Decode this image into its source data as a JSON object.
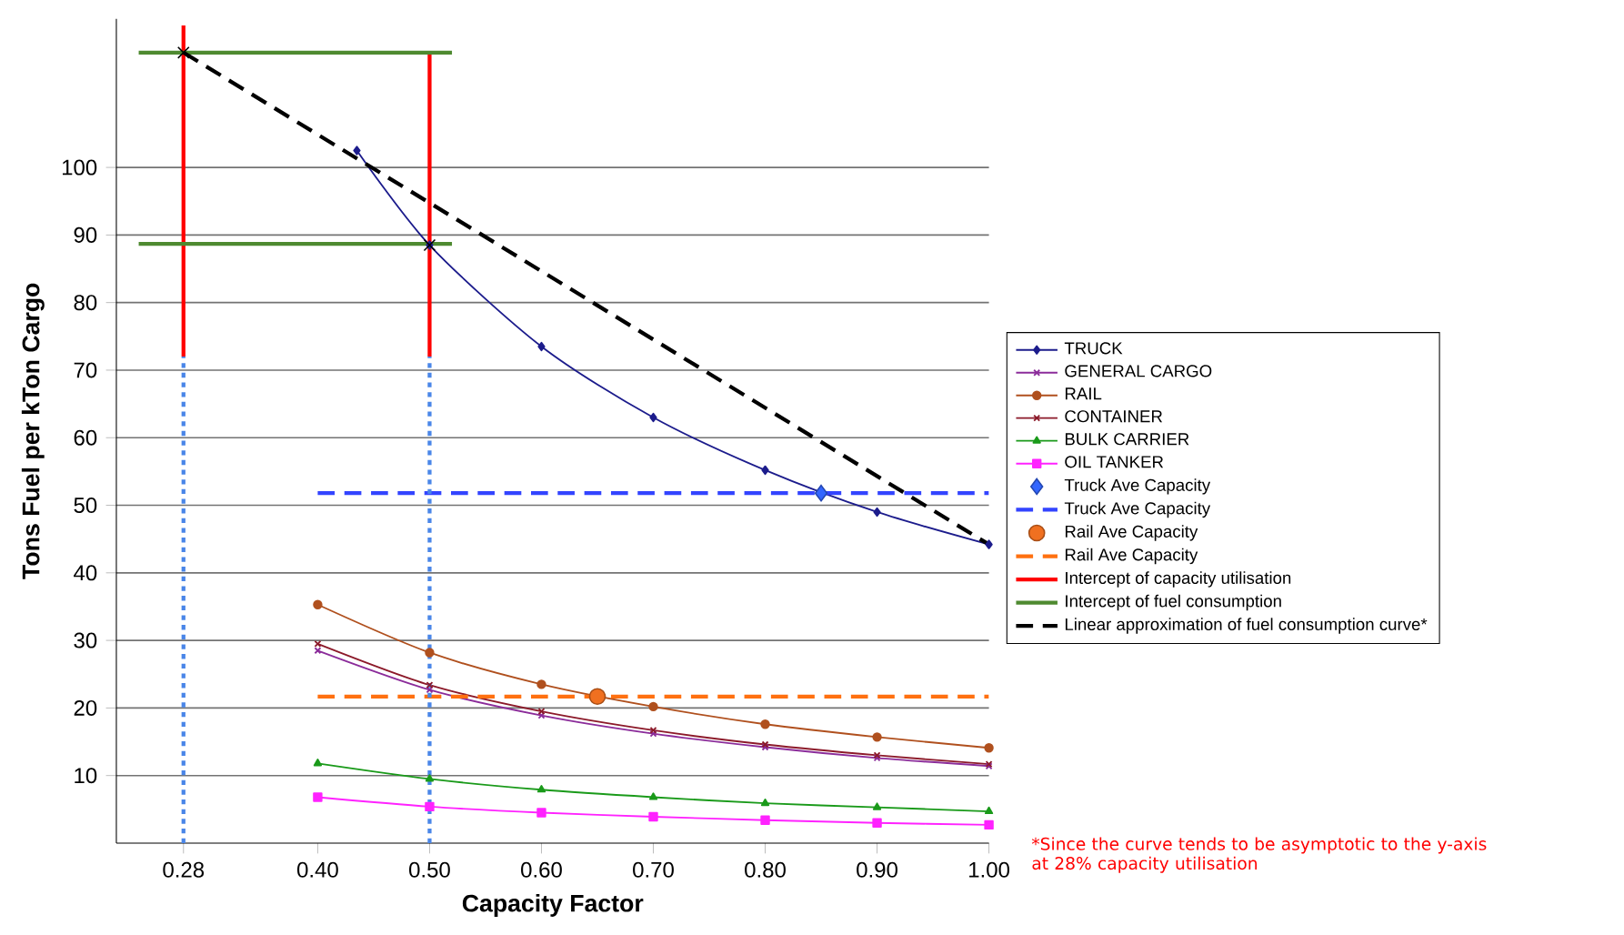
{
  "chart_data": {
    "type": "line",
    "xlabel": "Capacity Factor",
    "ylabel": "Tons Fuel per kTon Cargo",
    "xlim": [
      0.22,
      1.0
    ],
    "ylim": [
      0,
      122
    ],
    "xticks": [
      {
        "value": 0.28,
        "label": "0.28"
      },
      {
        "value": 0.4,
        "label": "0.40"
      },
      {
        "value": 0.5,
        "label": "0.50"
      },
      {
        "value": 0.6,
        "label": "0.60"
      },
      {
        "value": 0.7,
        "label": "0.70"
      },
      {
        "value": 0.8,
        "label": "0.80"
      },
      {
        "value": 0.9,
        "label": "0.90"
      },
      {
        "value": 1.0,
        "label": "1.00"
      }
    ],
    "yticks": [
      10,
      20,
      30,
      40,
      50,
      60,
      70,
      80,
      90,
      100
    ],
    "grid": "y",
    "legend": "right",
    "series": [
      {
        "name": "TRUCK",
        "color": "#1c1c8c",
        "marker": "diamond",
        "x": [
          0.435,
          0.5,
          0.6,
          0.7,
          0.8,
          0.9,
          1.0
        ],
        "values": [
          102.5,
          88.5,
          73.5,
          63,
          55.2,
          49,
          44.2
        ]
      },
      {
        "name": "GENERAL CARGO",
        "color": "#8b2c9a",
        "marker": "cross",
        "x": [
          0.4,
          0.5,
          0.6,
          0.7,
          0.8,
          0.9,
          1.0
        ],
        "values": [
          28.5,
          22.7,
          18.9,
          16.2,
          14.2,
          12.6,
          11.4
        ]
      },
      {
        "name": "RAIL",
        "color": "#b0501e",
        "marker": "circle",
        "x": [
          0.4,
          0.5,
          0.6,
          0.7,
          0.8,
          0.9,
          1.0
        ],
        "values": [
          35.3,
          28.2,
          23.5,
          20.2,
          17.6,
          15.7,
          14.1
        ]
      },
      {
        "name": "CONTAINER",
        "color": "#8c1a2a",
        "marker": "cross",
        "x": [
          0.4,
          0.5,
          0.6,
          0.7,
          0.8,
          0.9,
          1.0
        ],
        "values": [
          29.5,
          23.4,
          19.5,
          16.7,
          14.6,
          13.0,
          11.7
        ]
      },
      {
        "name": "BULK CARRIER",
        "color": "#1a9a1a",
        "marker": "triangle",
        "x": [
          0.4,
          0.5,
          0.6,
          0.7,
          0.8,
          0.9,
          1.0
        ],
        "values": [
          11.8,
          9.5,
          7.9,
          6.8,
          5.9,
          5.3,
          4.7
        ]
      },
      {
        "name": "OIL TANKER",
        "color": "#ff22ff",
        "marker": "square",
        "x": [
          0.4,
          0.5,
          0.6,
          0.7,
          0.8,
          0.9,
          1.0
        ],
        "values": [
          6.8,
          5.4,
          4.5,
          3.9,
          3.4,
          3.0,
          2.7
        ]
      },
      {
        "name": "Truck Ave Capacity",
        "type": "scatter",
        "color": "#3366ff",
        "marker": "diamond",
        "x": [
          0.85
        ],
        "values": [
          51.8
        ]
      },
      {
        "name": "Truck Ave Capacity",
        "color": "#3344ff",
        "marker": "none",
        "line_style": "dashed",
        "x": [
          0.4,
          1.0
        ],
        "values": [
          51.8,
          51.8
        ]
      },
      {
        "name": "Rail Ave Capacity",
        "type": "scatter",
        "color": "#f07020",
        "marker": "circle",
        "x": [
          0.65
        ],
        "values": [
          21.7
        ]
      },
      {
        "name": "Rail Ave Capacity",
        "color": "#ff7010",
        "marker": "none",
        "line_style": "dashed",
        "x": [
          0.4,
          1.0
        ],
        "values": [
          21.7,
          21.7
        ]
      },
      {
        "name": "Intercept of capacity utilisation",
        "color": "#ff0000",
        "marker": "none",
        "x": [
          0.28,
          0.28
        ],
        "values": [
          72,
          121
        ]
      },
      {
        "color": "#ff0000",
        "marker": "none",
        "x": [
          0.5,
          0.5
        ],
        "values": [
          72,
          117
        ]
      },
      {
        "name": "Intercept of fuel consumption",
        "color": "#4e8a30",
        "marker": "none",
        "x": [
          0.24,
          0.52
        ],
        "values": [
          117,
          117
        ]
      },
      {
        "color": "#4e8a30",
        "marker": "none",
        "x": [
          0.24,
          0.52
        ],
        "values": [
          88.7,
          88.7
        ]
      },
      {
        "name": "Linear approximation of fuel consumption curve*",
        "color": "#000000",
        "marker": "none",
        "line_style": "dashed",
        "x": [
          0.28,
          1.0
        ],
        "values": [
          117,
          44.2
        ]
      },
      {
        "type": "scatter",
        "color": "#000000",
        "marker": "cross",
        "x": [
          0.28,
          0.5
        ],
        "values": [
          117,
          88.5
        ]
      },
      {
        "color": "#4a86e8",
        "marker": "none",
        "line_style": "dotted",
        "x": [
          0.28,
          0.28
        ],
        "values": [
          0,
          72
        ]
      },
      {
        "color": "#4a86e8",
        "marker": "none",
        "line_style": "dotted",
        "x": [
          0.5,
          0.5
        ],
        "values": [
          0,
          72
        ]
      }
    ],
    "annotations": [
      "*Since the curve tends to be asymptotic to the y-axis at 28% capacity utilisation"
    ]
  }
}
